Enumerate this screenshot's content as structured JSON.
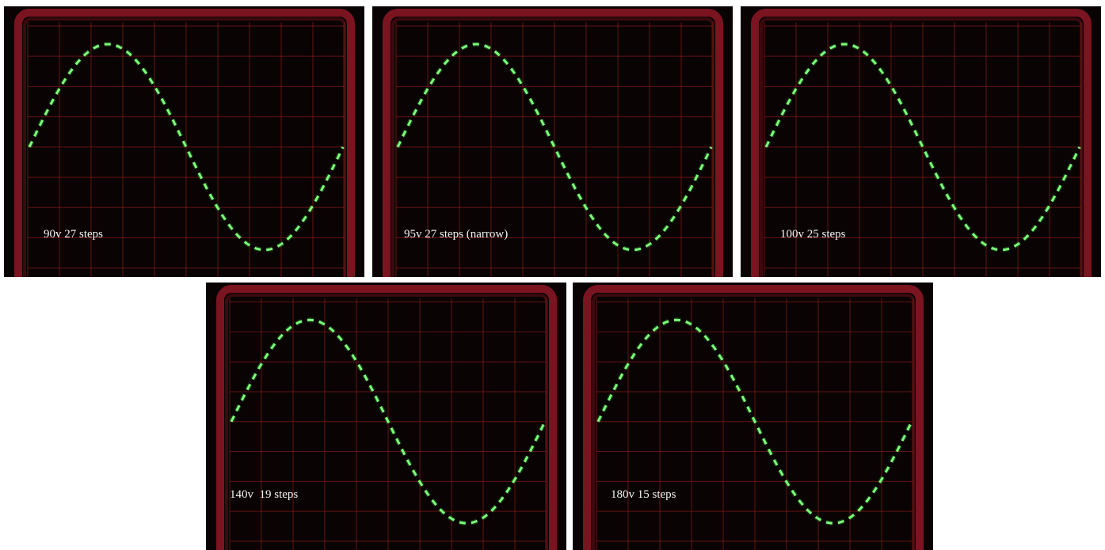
{
  "panels": [
    {
      "caption": "90v 27 steps"
    },
    {
      "caption": "95v 27 steps (narrow)"
    },
    {
      "caption": "100v 25 steps"
    },
    {
      "caption": "140v  19 steps"
    },
    {
      "caption": "180v 15 steps"
    }
  ]
}
